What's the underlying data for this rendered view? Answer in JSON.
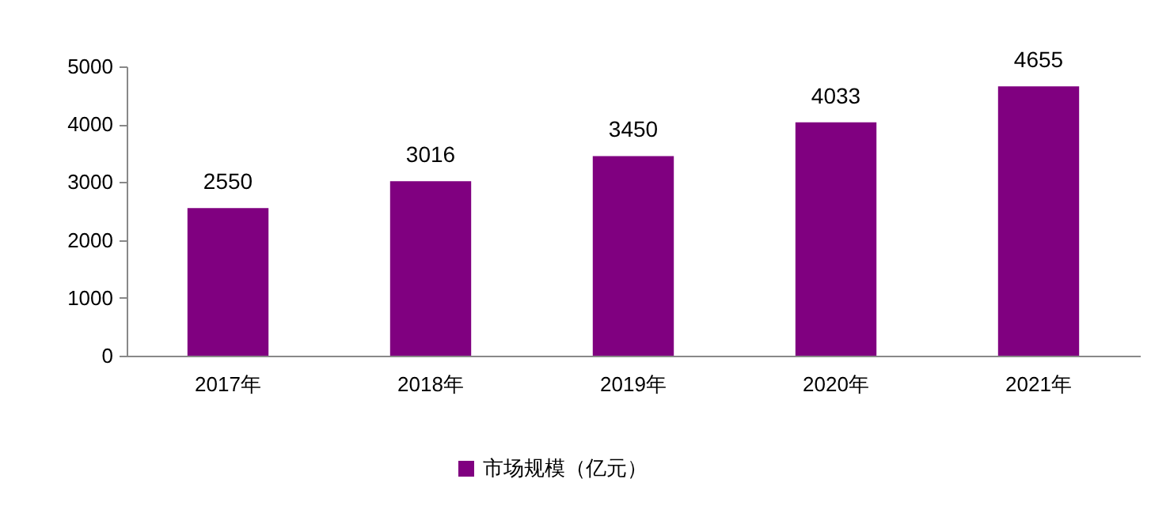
{
  "chart_data": {
    "type": "bar",
    "categories": [
      "2017年",
      "2018年",
      "2019年",
      "2020年",
      "2021年"
    ],
    "series": [
      {
        "name": "市场规模（亿元）",
        "color": "#800080",
        "values": [
          2550,
          3016,
          3450,
          4033,
          4655
        ]
      }
    ],
    "ylim": [
      0,
      5000
    ],
    "yticks": [
      0,
      1000,
      2000,
      3000,
      4000,
      5000
    ],
    "grid": false,
    "legend": "bottom",
    "data_labels": true
  }
}
